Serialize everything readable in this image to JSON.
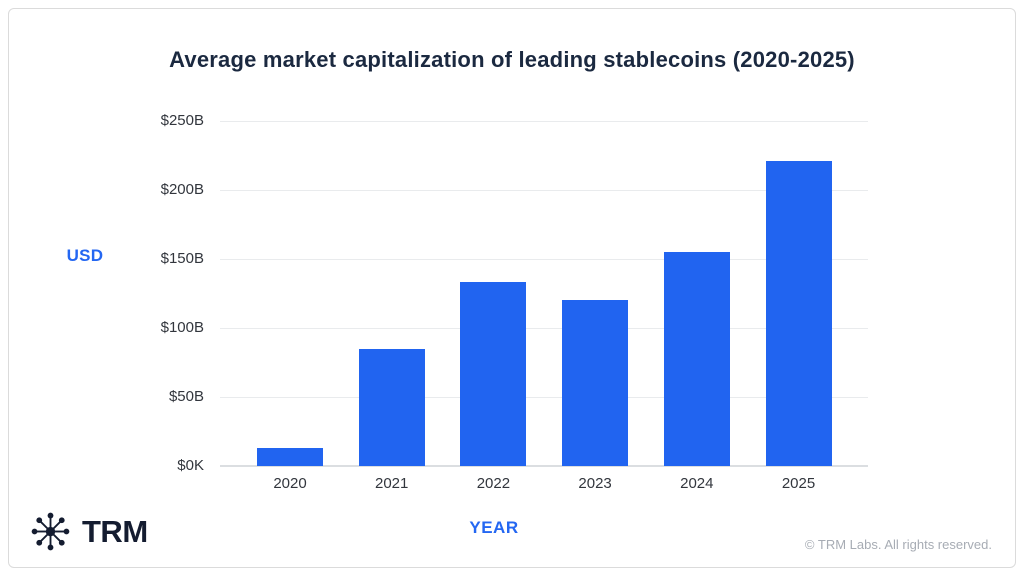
{
  "title": "Average market capitalization of leading stablecoins (2020-2025)",
  "footer": {
    "logo_text": "TRM",
    "logo_icon": "trm-network-icon",
    "copyright": "© TRM Labs. All rights reserved."
  },
  "colors": {
    "bar": "#2164f0",
    "accent_text": "#2467f2",
    "title_text": "#1b2940",
    "axis_text": "#32363d",
    "gridline": "#e9ebed",
    "baseline": "#dbdee1",
    "copyright_text": "#a7acb4",
    "logo": "#141c30",
    "border": "#dbdbdb"
  },
  "chart_data": {
    "type": "bar",
    "title": "Average market capitalization of leading stablecoins (2020-2025)",
    "categories": [
      "2020",
      "2021",
      "2022",
      "2023",
      "2024",
      "2025"
    ],
    "values": [
      13,
      85,
      133,
      120,
      155,
      221
    ],
    "unit": "USD billions",
    "xlabel": "YEAR",
    "ylabel": "USD",
    "ylim": [
      0,
      250
    ],
    "grid": true,
    "legend": false,
    "y_ticks": [
      {
        "value": 250,
        "label": "$250B"
      },
      {
        "value": 200,
        "label": "$200B"
      },
      {
        "value": 150,
        "label": "$150B"
      },
      {
        "value": 100,
        "label": "$100B"
      },
      {
        "value": 50,
        "label": "$50B"
      },
      {
        "value": 0,
        "label": "$0K"
      }
    ]
  }
}
